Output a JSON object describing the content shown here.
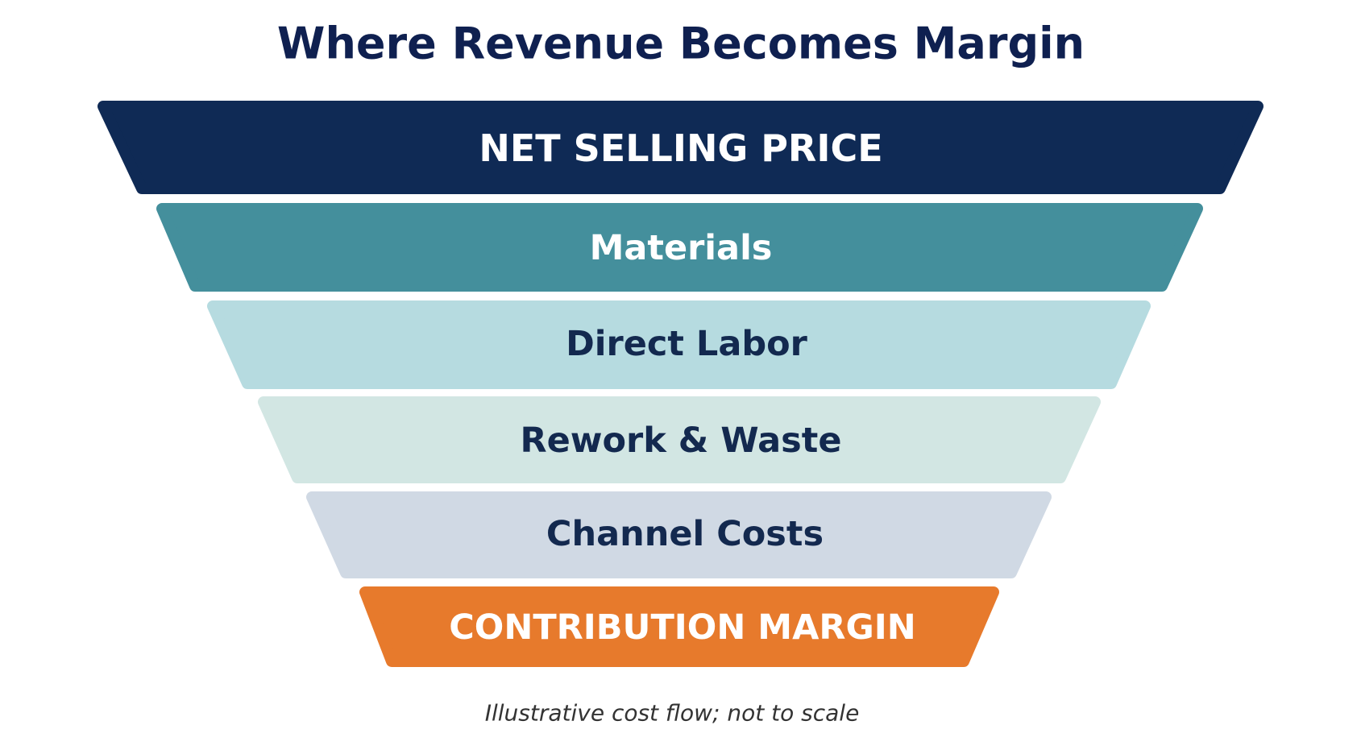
{
  "title": "Where Revenue Becomes Margin",
  "stages": [
    {
      "label": "NET SELLING PRICE"
    },
    {
      "label": "Materials"
    },
    {
      "label": "Direct Labor"
    },
    {
      "label": "Rework & Waste"
    },
    {
      "label": "Channel Costs"
    },
    {
      "label": "CONTRIBUTION MARGIN"
    }
  ],
  "note": "Illustrative cost flow; not to scale"
}
